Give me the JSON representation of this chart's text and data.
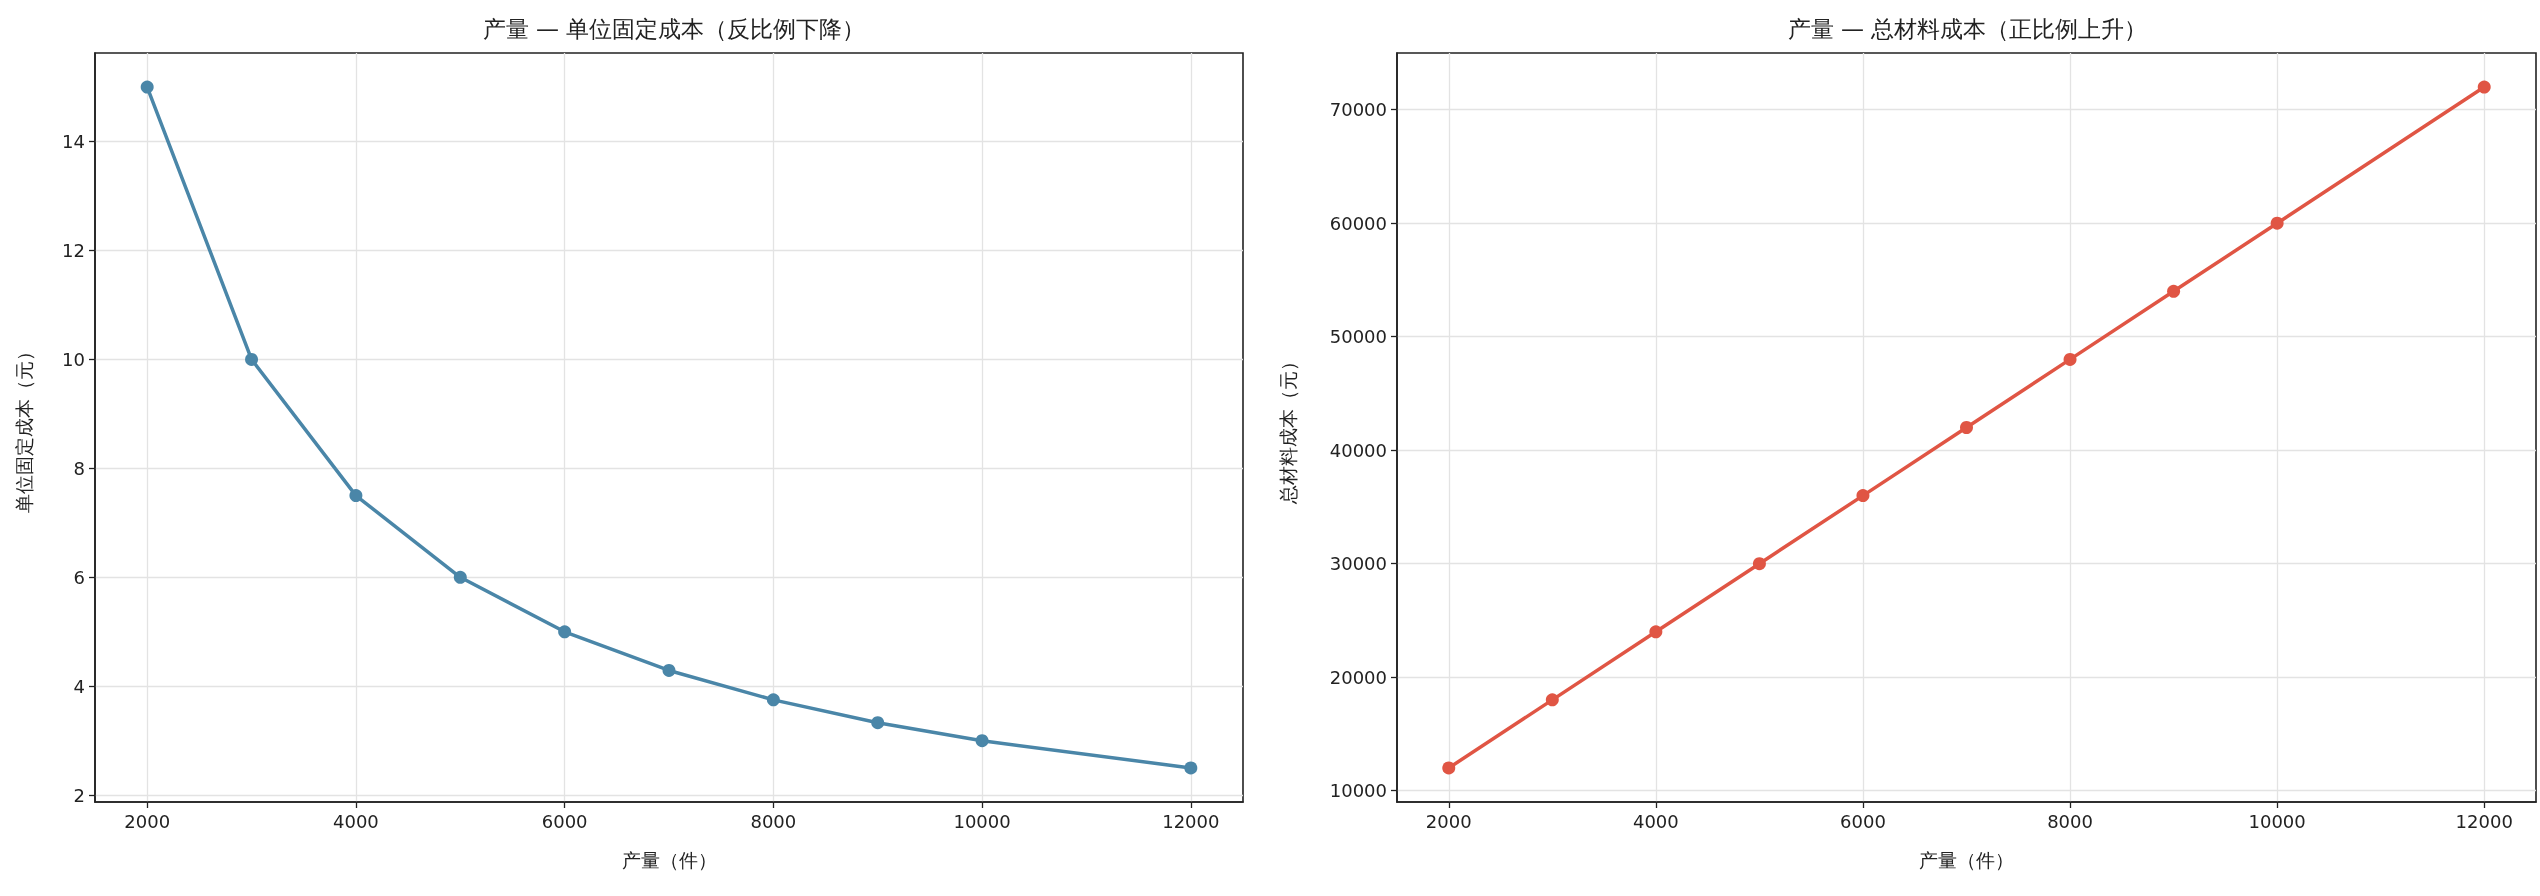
{
  "chart_data": [
    {
      "type": "line",
      "title": "产量 — 单位固定成本（反比例下降）",
      "xlabel": "产量（件）",
      "ylabel": "单位固定成本（元）",
      "x": [
        2000,
        3000,
        4000,
        5000,
        6000,
        7000,
        8000,
        9000,
        10000,
        12000
      ],
      "series": [
        {
          "color": "#4a86a8",
          "values": [
            15,
            10,
            7.5,
            6,
            5,
            4.29,
            3.75,
            3.33,
            3,
            2.5
          ]
        }
      ],
      "xlim": [
        1500,
        12500
      ],
      "xticks": [
        2000,
        4000,
        6000,
        8000,
        10000,
        12000
      ],
      "ylim": [
        1.875,
        15.625
      ],
      "yticks": [
        2,
        4,
        6,
        8,
        10,
        12,
        14
      ],
      "grid": true,
      "marker": "circle",
      "line_style": "solid"
    },
    {
      "type": "line",
      "title": "产量 — 总材料成本（正比例上升）",
      "xlabel": "产量（件）",
      "ylabel": "总材料成本（元）",
      "x": [
        2000,
        3000,
        4000,
        5000,
        6000,
        7000,
        8000,
        9000,
        10000,
        12000
      ],
      "series": [
        {
          "color": "#e05544",
          "values": [
            12000,
            18000,
            24000,
            30000,
            36000,
            42000,
            48000,
            54000,
            60000,
            72000
          ]
        }
      ],
      "xlim": [
        1500,
        12500
      ],
      "xticks": [
        2000,
        4000,
        6000,
        8000,
        10000,
        12000
      ],
      "ylim": [
        9000,
        75000
      ],
      "yticks": [
        10000,
        20000,
        30000,
        40000,
        50000,
        60000,
        70000
      ],
      "grid": true,
      "marker": "circle",
      "line_style": "solid"
    }
  ]
}
